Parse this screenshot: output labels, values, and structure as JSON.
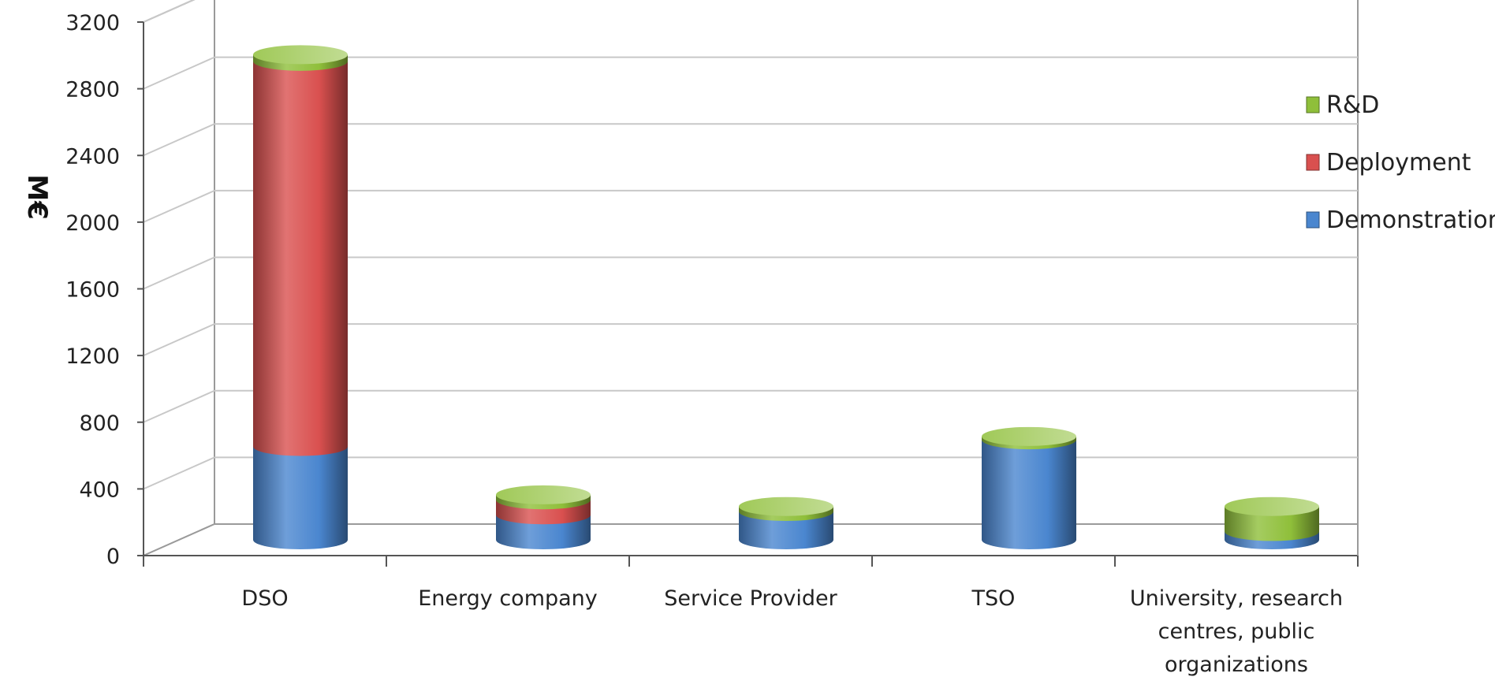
{
  "chart_data": {
    "type": "bar",
    "stacked": true,
    "style": "3d-cylinder",
    "title": "",
    "xlabel": "",
    "ylabel": "M€",
    "ylim": [
      0,
      3200
    ],
    "yticks": [
      "0",
      "400",
      "800",
      "1200",
      "1600",
      "2000",
      "2400",
      "2800",
      "3200"
    ],
    "ytick_values": [
      0,
      400,
      800,
      1200,
      1600,
      2000,
      2400,
      2800,
      3200
    ],
    "grid": true,
    "legend_position": "right",
    "categories": [
      [
        "DSO"
      ],
      [
        "Energy company"
      ],
      [
        "Service Provider"
      ],
      [
        "TSO"
      ],
      [
        "University, research",
        "centres, public",
        "organizations"
      ]
    ],
    "series": [
      {
        "name": "Demonstration",
        "color": "#4a86cf",
        "values": [
          560,
          150,
          170,
          600,
          50
        ]
      },
      {
        "name": "Deployment",
        "color": "#d9504f",
        "values": [
          2310,
          90,
          0,
          0,
          0
        ]
      },
      {
        "name": "R&D",
        "color": "#8fbf3a",
        "values": [
          40,
          30,
          30,
          20,
          150
        ]
      }
    ],
    "legend_order": [
      "R&D",
      "Deployment",
      "Demonstration"
    ]
  }
}
